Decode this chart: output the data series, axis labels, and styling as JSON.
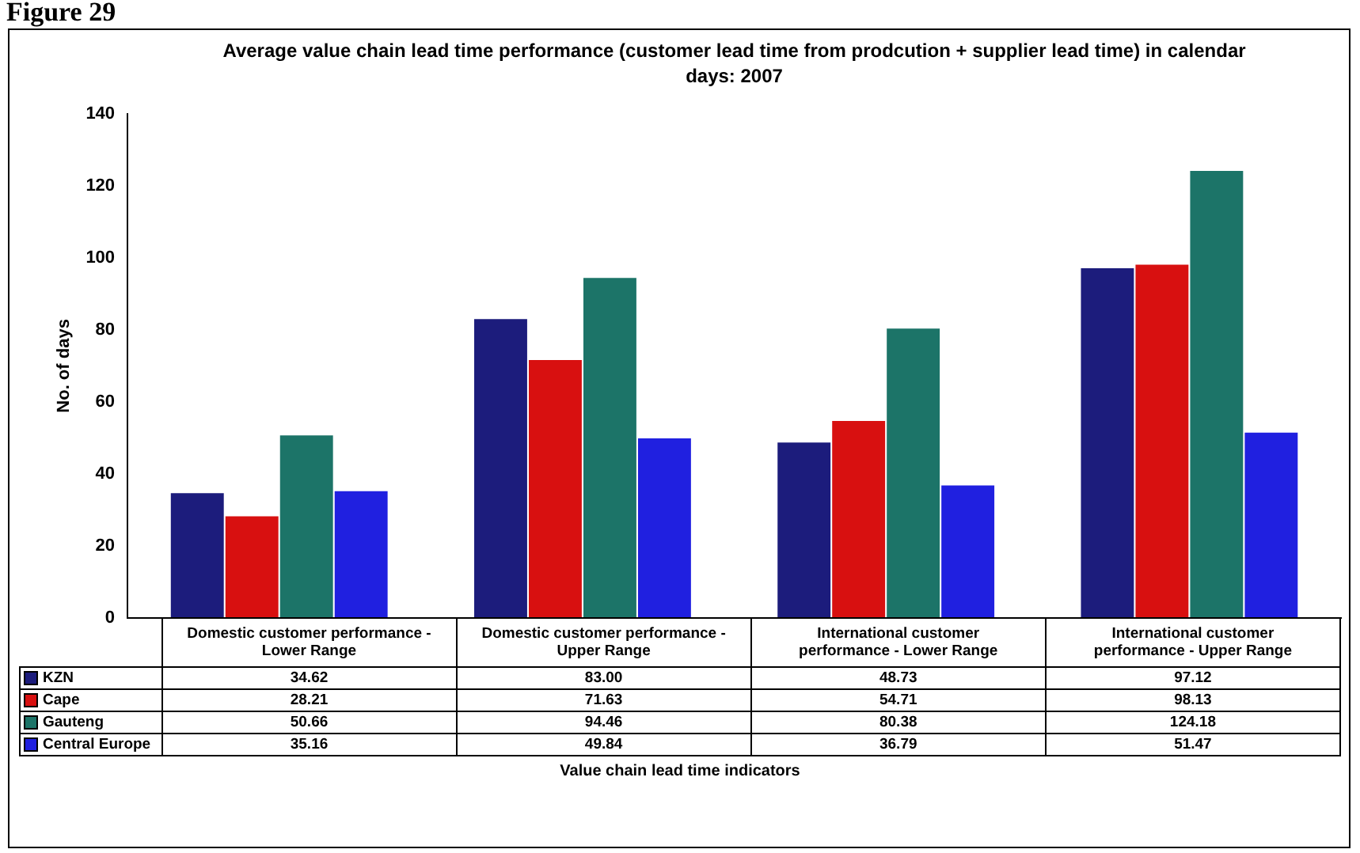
{
  "chart_data": {
    "type": "bar",
    "title": "Average value chain lead time performance (customer lead time from prodcution + supplier lead time) in calendar days: 2007",
    "ylabel": "No. of days",
    "annotations": [
      "Figure 29",
      "Value chain lead time indicators"
    ],
    "categories": [
      "Domestic customer performance - Lower Range",
      "Domestic customer performance - Upper Range",
      "International customer performance - Lower Range",
      "International customer performance - Upper Range"
    ],
    "series": [
      {
        "name": "KZN",
        "color": "#1c1c7c",
        "values": [
          34.62,
          83.0,
          48.73,
          97.12
        ],
        "value_labels": [
          "34.62",
          "83.00",
          "48.73",
          "97.12"
        ]
      },
      {
        "name": "Cape",
        "color": "#d81010",
        "values": [
          28.21,
          71.63,
          54.71,
          98.13
        ],
        "value_labels": [
          "28.21",
          "71.63",
          "54.71",
          "98.13"
        ]
      },
      {
        "name": "Gauteng",
        "color": "#1c7468",
        "values": [
          50.66,
          94.46,
          80.38,
          124.18
        ],
        "value_labels": [
          "50.66",
          "94.46",
          "80.38",
          "124.18"
        ]
      },
      {
        "name": "Central Europe",
        "color": "#2020e0",
        "values": [
          35.16,
          49.84,
          36.79,
          51.47
        ],
        "value_labels": [
          "35.16",
          "49.84",
          "36.79",
          "51.47"
        ]
      }
    ],
    "ylim": [
      0,
      140
    ],
    "yticks": [
      0,
      20,
      40,
      60,
      80,
      100,
      120,
      140
    ],
    "grid": false,
    "legend": "bottom"
  }
}
